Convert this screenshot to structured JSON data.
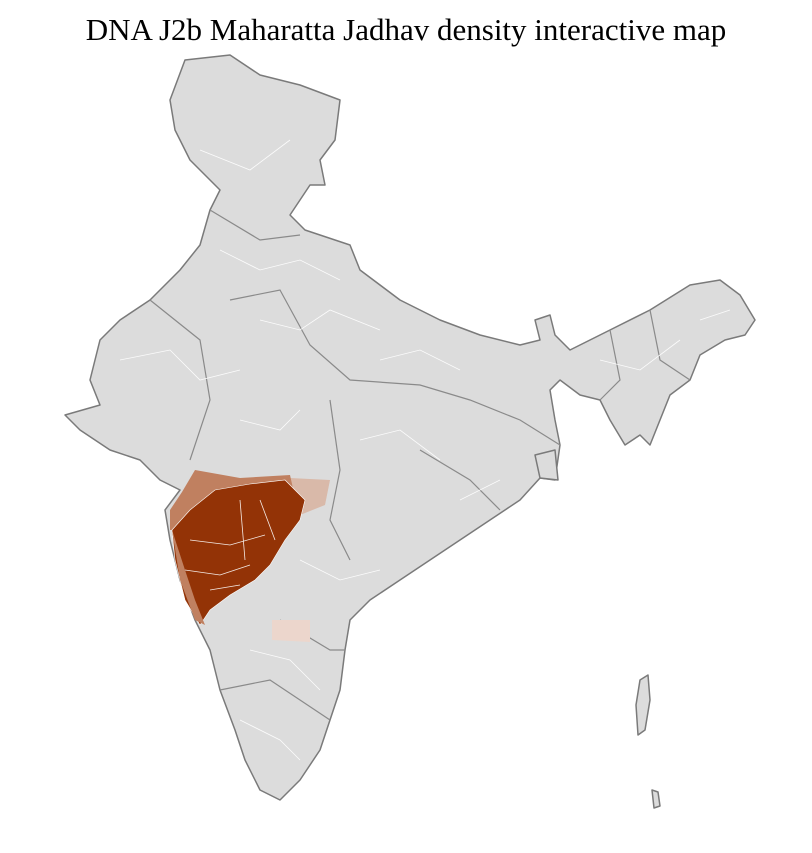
{
  "header": {
    "title": "DNA J2b Maharatta Jadhav density interactive map"
  }
}
